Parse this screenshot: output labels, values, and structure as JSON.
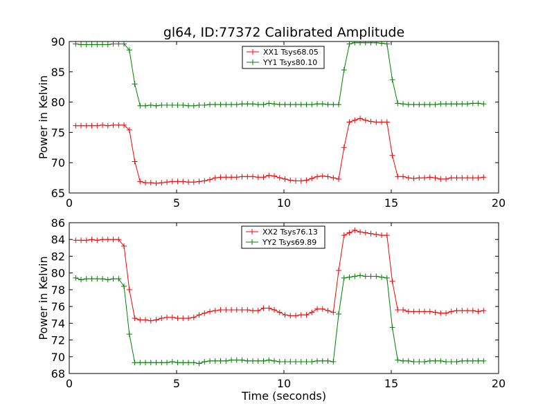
{
  "chart_data": {
    "type": "line",
    "title": "gl64, ID:77372 Calibrated Amplitude",
    "xlabel": "Time (seconds)",
    "panels": [
      {
        "ylabel": "Power in Kelvin",
        "xlim": [
          0,
          20
        ],
        "ylim": [
          65,
          90
        ],
        "xticks": [
          0,
          5,
          10,
          15,
          20
        ],
        "yticks": [
          65,
          70,
          75,
          80,
          85,
          90
        ],
        "legend_position": "top-center",
        "series": [
          {
            "name": "XX1 Tsys68.05",
            "color": "#ff0000",
            "x": [
              0.3,
              0.55,
              0.8,
              1.05,
              1.3,
              1.55,
              1.8,
              2.05,
              2.3,
              2.55,
              2.8,
              3.05,
              3.3,
              3.55,
              3.8,
              4.05,
              4.3,
              4.55,
              4.8,
              5.05,
              5.3,
              5.55,
              5.8,
              6.05,
              6.3,
              6.55,
              6.8,
              7.05,
              7.3,
              7.55,
              7.8,
              8.05,
              8.3,
              8.55,
              8.8,
              9.05,
              9.3,
              9.55,
              9.8,
              10.05,
              10.3,
              10.55,
              10.8,
              11.05,
              11.3,
              11.55,
              11.8,
              12.05,
              12.3,
              12.55,
              12.8,
              13.05,
              13.3,
              13.55,
              13.8,
              14.05,
              14.3,
              14.55,
              14.8,
              15.05,
              15.3,
              15.55,
              15.8,
              16.05,
              16.3,
              16.55,
              16.8,
              17.05,
              17.3,
              17.55,
              17.8,
              18.05,
              18.3,
              18.55,
              18.8,
              19.05,
              19.3
            ],
            "y": [
              76.1,
              76.1,
              76.1,
              76.1,
              76.1,
              76.2,
              76.1,
              76.2,
              76.2,
              76.2,
              75.4,
              70.2,
              66.9,
              66.7,
              66.7,
              66.6,
              66.7,
              66.8,
              66.9,
              66.9,
              66.9,
              66.8,
              66.8,
              66.9,
              67.0,
              67.2,
              67.5,
              67.6,
              67.6,
              67.6,
              67.6,
              67.7,
              67.7,
              67.7,
              67.6,
              67.6,
              67.9,
              67.8,
              67.5,
              67.3,
              67.1,
              67.0,
              67.0,
              67.1,
              67.4,
              67.7,
              67.8,
              67.7,
              67.5,
              67.3,
              72.5,
              76.7,
              77.0,
              77.3,
              77.0,
              76.8,
              76.7,
              76.7,
              76.7,
              71.2,
              67.7,
              67.7,
              67.5,
              67.4,
              67.5,
              67.5,
              67.6,
              67.5,
              67.3,
              67.3,
              67.5,
              67.5,
              67.5,
              67.5,
              67.5,
              67.5,
              67.6
            ],
            "marker": "+"
          },
          {
            "name": "YY1 Tsys80.10",
            "color": "#008000",
            "x": [
              0.3,
              0.55,
              0.8,
              1.05,
              1.3,
              1.55,
              1.8,
              2.05,
              2.3,
              2.55,
              2.8,
              3.05,
              3.3,
              3.55,
              3.8,
              4.05,
              4.3,
              4.55,
              4.8,
              5.05,
              5.3,
              5.55,
              5.8,
              6.05,
              6.3,
              6.55,
              6.8,
              7.05,
              7.3,
              7.55,
              7.8,
              8.05,
              8.3,
              8.55,
              8.8,
              9.05,
              9.3,
              9.55,
              9.8,
              10.05,
              10.3,
              10.55,
              10.8,
              11.05,
              11.3,
              11.55,
              11.8,
              12.05,
              12.3,
              12.55,
              12.8,
              13.05,
              13.3,
              13.55,
              13.8,
              14.05,
              14.3,
              14.55,
              14.8,
              15.05,
              15.3,
              15.55,
              15.8,
              16.05,
              16.3,
              16.55,
              16.8,
              17.05,
              17.3,
              17.55,
              17.8,
              18.05,
              18.3,
              18.55,
              18.8,
              19.05,
              19.3
            ],
            "y": [
              89.6,
              89.5,
              89.5,
              89.5,
              89.5,
              89.5,
              89.5,
              89.6,
              89.6,
              89.6,
              88.6,
              83.0,
              79.4,
              79.4,
              79.5,
              79.4,
              79.5,
              79.5,
              79.5,
              79.5,
              79.5,
              79.4,
              79.4,
              79.5,
              79.5,
              79.6,
              79.6,
              79.6,
              79.6,
              79.6,
              79.6,
              79.7,
              79.7,
              79.7,
              79.6,
              79.6,
              79.8,
              79.7,
              79.6,
              79.6,
              79.6,
              79.6,
              79.6,
              79.6,
              79.6,
              79.7,
              79.7,
              79.6,
              79.6,
              79.6,
              85.3,
              89.6,
              89.8,
              89.8,
              89.8,
              89.8,
              89.8,
              89.7,
              89.6,
              83.7,
              79.8,
              79.7,
              79.6,
              79.6,
              79.6,
              79.6,
              79.6,
              79.6,
              79.7,
              79.7,
              79.7,
              79.7,
              79.7,
              79.7,
              79.8,
              79.8,
              79.7
            ],
            "marker": "+"
          }
        ]
      },
      {
        "ylabel": "Power in Kelvin",
        "xlim": [
          0,
          20
        ],
        "ylim": [
          68,
          86
        ],
        "xticks": [
          0,
          5,
          10,
          15,
          20
        ],
        "yticks": [
          68,
          70,
          72,
          74,
          76,
          78,
          80,
          82,
          84,
          86
        ],
        "legend_position": "top-center",
        "series": [
          {
            "name": "XX2 Tsys76.13",
            "color": "#ff0000",
            "x": [
              0.3,
              0.55,
              0.8,
              1.05,
              1.3,
              1.55,
              1.8,
              2.05,
              2.3,
              2.55,
              2.8,
              3.05,
              3.3,
              3.55,
              3.8,
              4.05,
              4.3,
              4.55,
              4.8,
              5.05,
              5.3,
              5.55,
              5.8,
              6.05,
              6.3,
              6.55,
              6.8,
              7.05,
              7.3,
              7.55,
              7.8,
              8.05,
              8.3,
              8.55,
              8.8,
              9.05,
              9.3,
              9.55,
              9.8,
              10.05,
              10.3,
              10.55,
              10.8,
              11.05,
              11.3,
              11.55,
              11.8,
              12.05,
              12.3,
              12.55,
              12.8,
              13.05,
              13.3,
              13.55,
              13.8,
              14.05,
              14.3,
              14.55,
              14.8,
              15.05,
              15.3,
              15.55,
              15.8,
              16.05,
              16.3,
              16.55,
              16.8,
              17.05,
              17.3,
              17.55,
              17.8,
              18.05,
              18.3,
              18.55,
              18.8,
              19.05,
              19.3
            ],
            "y": [
              83.9,
              83.9,
              83.9,
              84.0,
              83.9,
              84.0,
              84.0,
              84.0,
              84.0,
              83.2,
              78.0,
              74.6,
              74.4,
              74.4,
              74.3,
              74.4,
              74.6,
              74.7,
              74.7,
              74.6,
              74.6,
              74.6,
              74.7,
              75.0,
              75.2,
              75.4,
              75.5,
              75.6,
              75.6,
              75.6,
              75.6,
              75.6,
              75.6,
              75.5,
              75.5,
              75.8,
              75.8,
              75.6,
              75.3,
              75.0,
              74.9,
              74.9,
              75.0,
              75.0,
              75.3,
              75.7,
              75.7,
              75.5,
              75.3,
              80.3,
              84.5,
              84.8,
              85.1,
              84.9,
              84.8,
              84.7,
              84.6,
              84.5,
              84.5,
              79.0,
              75.6,
              75.6,
              75.4,
              75.4,
              75.4,
              75.4,
              75.4,
              75.3,
              75.2,
              75.2,
              75.4,
              75.5,
              75.5,
              75.5,
              75.5,
              75.4,
              75.5
            ],
            "marker": "+"
          },
          {
            "name": "YY2 Tsys69.89",
            "color": "#008000",
            "x": [
              0.3,
              0.55,
              0.8,
              1.05,
              1.3,
              1.55,
              1.8,
              2.05,
              2.3,
              2.55,
              2.8,
              3.05,
              3.3,
              3.55,
              3.8,
              4.05,
              4.3,
              4.55,
              4.8,
              5.05,
              5.3,
              5.55,
              5.8,
              6.05,
              6.3,
              6.55,
              6.8,
              7.05,
              7.3,
              7.55,
              7.8,
              8.05,
              8.3,
              8.55,
              8.8,
              9.05,
              9.3,
              9.55,
              9.8,
              10.05,
              10.3,
              10.55,
              10.8,
              11.05,
              11.3,
              11.55,
              11.8,
              12.05,
              12.3,
              12.55,
              12.8,
              13.05,
              13.3,
              13.55,
              13.8,
              14.05,
              14.3,
              14.55,
              14.8,
              15.05,
              15.3,
              15.55,
              15.8,
              16.05,
              16.3,
              16.55,
              16.8,
              17.05,
              17.3,
              17.55,
              17.8,
              18.05,
              18.3,
              18.55,
              18.8,
              19.05,
              19.3
            ],
            "y": [
              79.4,
              79.2,
              79.3,
              79.3,
              79.3,
              79.3,
              79.2,
              79.3,
              79.3,
              78.4,
              72.7,
              69.3,
              69.3,
              69.3,
              69.3,
              69.3,
              69.3,
              69.3,
              69.4,
              69.3,
              69.3,
              69.3,
              69.3,
              69.2,
              69.4,
              69.5,
              69.5,
              69.5,
              69.5,
              69.6,
              69.6,
              69.6,
              69.5,
              69.5,
              69.5,
              69.5,
              69.6,
              69.5,
              69.4,
              69.4,
              69.4,
              69.4,
              69.4,
              69.4,
              69.4,
              69.5,
              69.5,
              69.5,
              69.4,
              75.1,
              79.4,
              79.5,
              79.6,
              79.7,
              79.6,
              79.6,
              79.6,
              79.5,
              79.4,
              73.5,
              69.6,
              69.5,
              69.5,
              69.4,
              69.4,
              69.4,
              69.5,
              69.5,
              69.5,
              69.4,
              69.4,
              69.4,
              69.5,
              69.5,
              69.5,
              69.5,
              69.5
            ],
            "marker": "+"
          }
        ]
      }
    ]
  }
}
